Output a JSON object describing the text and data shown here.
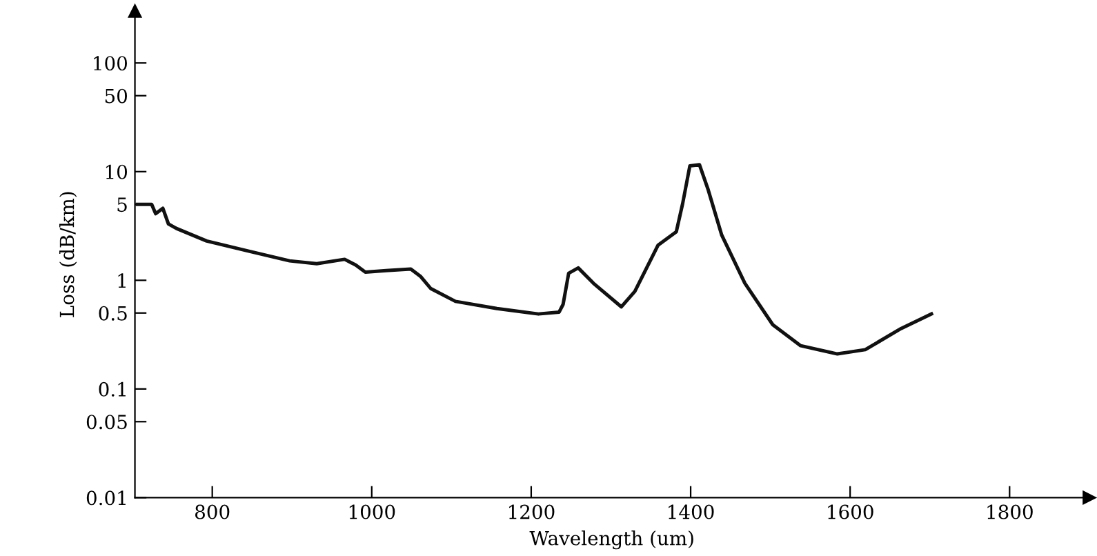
{
  "chart_data": {
    "type": "line",
    "xlabel": "Wavelength (um)",
    "ylabel": "Loss (dB/km)",
    "log": "y",
    "grid": false,
    "marker": "none",
    "line_style": "solid",
    "xlim": [
      703,
      1900
    ],
    "xticks": [
      800,
      1000,
      1200,
      1400,
      1600,
      1800
    ],
    "ylim": [
      0.01,
      300
    ],
    "yticks": [
      0.01,
      0.05,
      0.1,
      0.5,
      1,
      5,
      10,
      50,
      100
    ],
    "series": [
      {
        "color": "#111111",
        "x": [
          706,
          724,
          729,
          738,
          745,
          755,
          793,
          845,
          897,
          931,
          966,
          980,
          992,
          1018,
          1049,
          1061,
          1074,
          1105,
          1157,
          1209,
          1235,
          1240,
          1247,
          1259,
          1278,
          1313,
          1330,
          1359,
          1382,
          1390,
          1399,
          1411,
          1422,
          1439,
          1468,
          1503,
          1538,
          1584,
          1619,
          1664,
          1702
        ],
        "values": [
          5.0,
          5.0,
          4.1,
          4.6,
          3.3,
          3.0,
          2.3,
          1.86,
          1.51,
          1.42,
          1.56,
          1.38,
          1.19,
          1.23,
          1.27,
          1.09,
          0.84,
          0.64,
          0.55,
          0.49,
          0.51,
          0.6,
          1.16,
          1.3,
          0.94,
          0.57,
          0.79,
          2.1,
          2.8,
          5.1,
          11.3,
          11.6,
          6.8,
          2.6,
          0.94,
          0.39,
          0.25,
          0.21,
          0.23,
          0.36,
          0.49
        ]
      }
    ]
  }
}
